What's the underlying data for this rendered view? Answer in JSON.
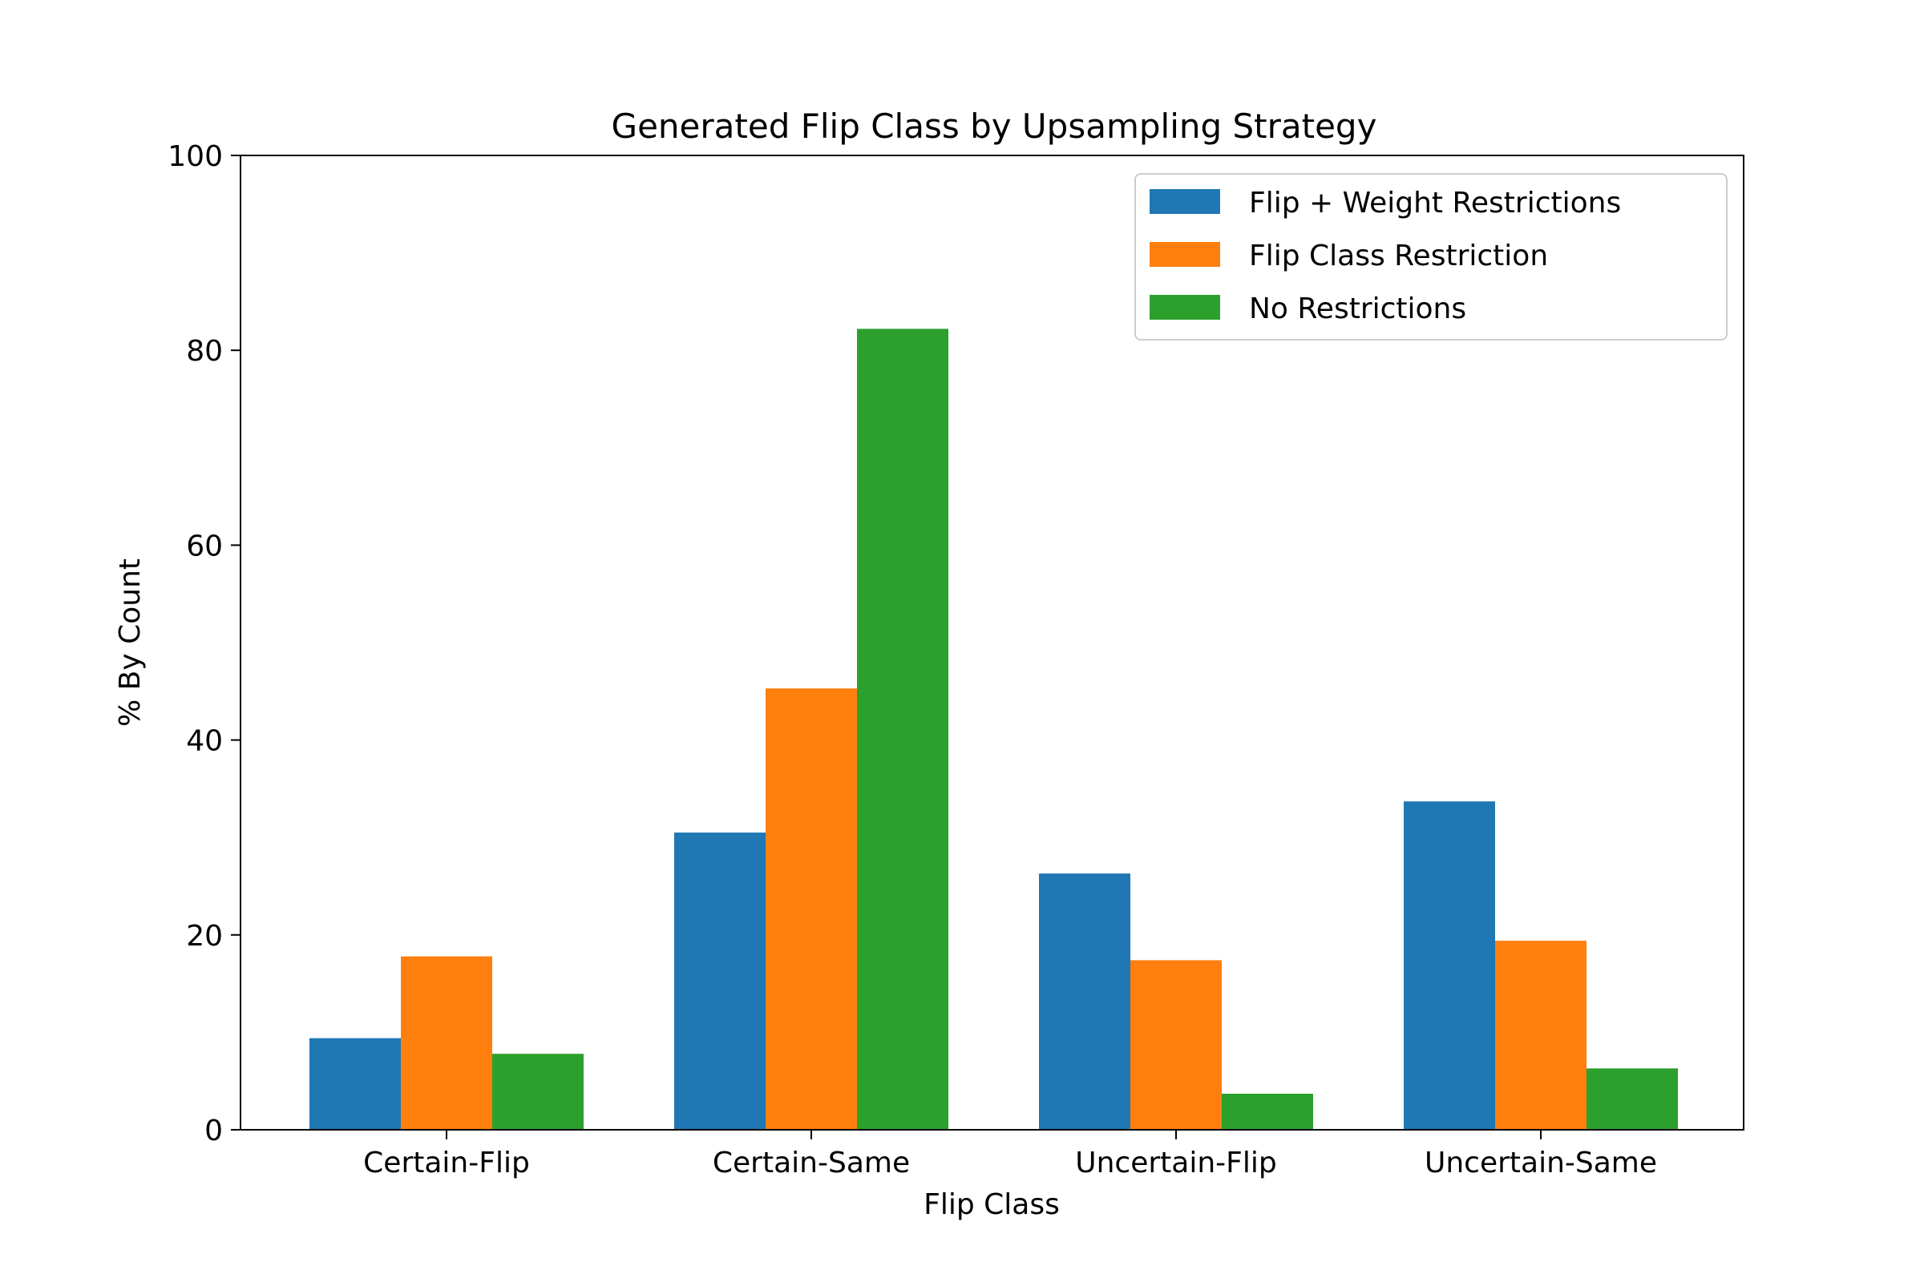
{
  "chart_data": {
    "type": "bar",
    "title": "Generated Flip Class by Upsampling Strategy",
    "xlabel": "Flip Class",
    "ylabel": "% By Count",
    "categories": [
      "Certain-Flip",
      "Certain-Same",
      "Uncertain-Flip",
      "Uncertain-Same"
    ],
    "ylim": [
      0,
      100
    ],
    "yticks": [
      "0",
      "20",
      "40",
      "60",
      "80",
      "100"
    ],
    "grid": false,
    "legend_position": "top-right",
    "series": [
      {
        "name": "Flip + Weight Restrictions",
        "color": "#1f77b4",
        "values": [
          9.4,
          30.5,
          26.3,
          33.7
        ]
      },
      {
        "name": "Flip Class Restriction",
        "color": "#ff7f0e",
        "values": [
          17.8,
          45.3,
          17.4,
          19.4
        ]
      },
      {
        "name": "No Restrictions",
        "color": "#2ca02c",
        "values": [
          7.8,
          82.2,
          3.7,
          6.3
        ]
      }
    ]
  }
}
